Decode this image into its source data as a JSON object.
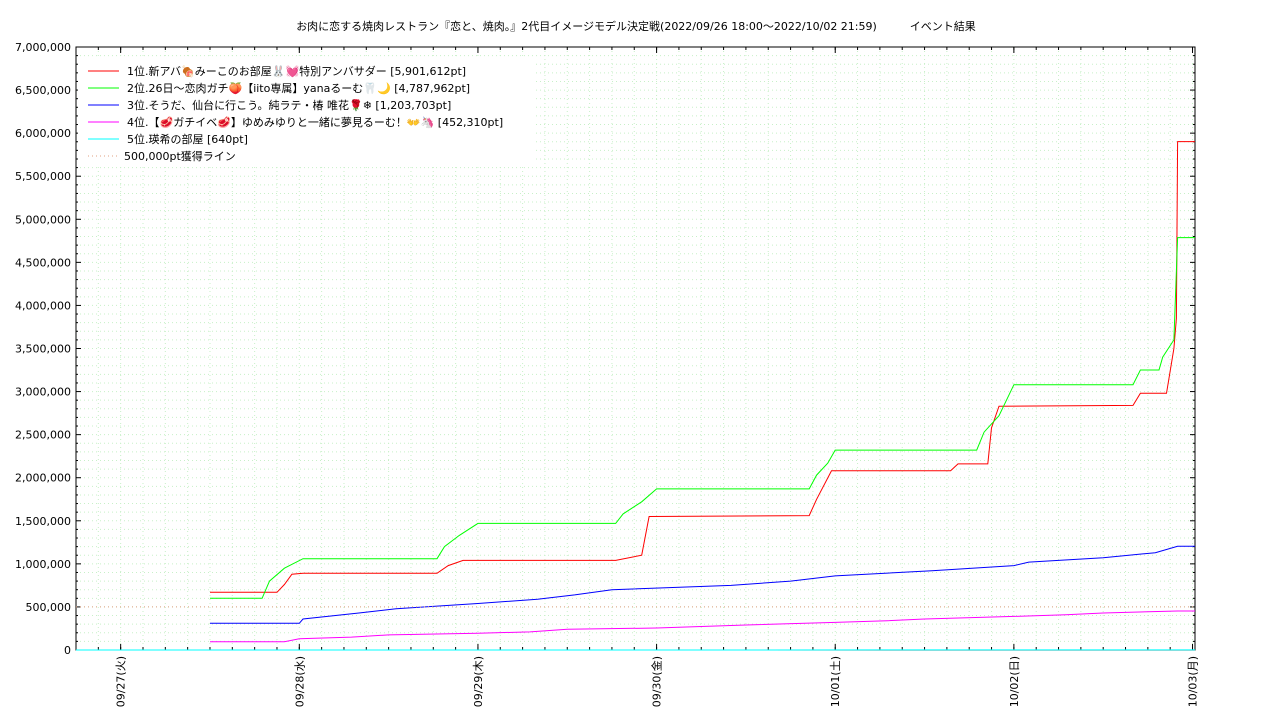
{
  "chart_data": {
    "type": "line",
    "title": "お肉に恋する焼肉レストラン『恋と、焼肉。』2代目イメージモデル決定戦(2022/09/26 18:00～2022/10/02 21:59)　　　イベント結果",
    "xlabel": "",
    "ylabel": "",
    "ylim": [
      0,
      7000000
    ],
    "xlim": [
      "2022-09-26T18:00",
      "2022-10-03T00:20"
    ],
    "grid": true,
    "legend_position": "top-left",
    "y_ticks": [
      {
        "value": 0,
        "label": "0"
      },
      {
        "value": 500000,
        "label": "500,000"
      },
      {
        "value": 1000000,
        "label": "1,000,000"
      },
      {
        "value": 1500000,
        "label": "1,500,000"
      },
      {
        "value": 2000000,
        "label": "2,000,000"
      },
      {
        "value": 2500000,
        "label": "2,500,000"
      },
      {
        "value": 3000000,
        "label": "3,000,000"
      },
      {
        "value": 3500000,
        "label": "3,500,000"
      },
      {
        "value": 4000000,
        "label": "4,000,000"
      },
      {
        "value": 4500000,
        "label": "4,500,000"
      },
      {
        "value": 5000000,
        "label": "5,000,000"
      },
      {
        "value": 5500000,
        "label": "5,500,000"
      },
      {
        "value": 6000000,
        "label": "6,000,000"
      },
      {
        "value": 6500000,
        "label": "6,500,000"
      },
      {
        "value": 7000000,
        "label": "7,000,000"
      }
    ],
    "x_ticks": [
      {
        "value": "2022-09-27T00:00",
        "label": "09/27(火)"
      },
      {
        "value": "2022-09-28T00:00",
        "label": "09/28(水)"
      },
      {
        "value": "2022-09-29T00:00",
        "label": "09/29(木)"
      },
      {
        "value": "2022-09-30T00:00",
        "label": "09/30(金)"
      },
      {
        "value": "2022-10-01T00:00",
        "label": "10/01(土)"
      },
      {
        "value": "2022-10-02T00:00",
        "label": "10/02(日)"
      },
      {
        "value": "2022-10-03T00:00",
        "label": "10/03(月)"
      }
    ],
    "series": [
      {
        "name": "1位.新アバ🍖みーこのお部屋🐰💓特別アンバサダー [5,901,612pt]",
        "color": "#ff0000",
        "dash": false,
        "points": [
          [
            "2022-09-27T12:00",
            670000
          ],
          [
            "2022-09-27T21:00",
            670000
          ],
          [
            "2022-09-27T22:00",
            760000
          ],
          [
            "2022-09-27T23:00",
            880000
          ],
          [
            "2022-09-28T00:30",
            890000
          ],
          [
            "2022-09-28T18:30",
            890000
          ],
          [
            "2022-09-28T20:00",
            980000
          ],
          [
            "2022-09-28T22:00",
            1040000
          ],
          [
            "2022-09-29T18:30",
            1040000
          ],
          [
            "2022-09-29T22:00",
            1100000
          ],
          [
            "2022-09-29T23:00",
            1550000
          ],
          [
            "2022-09-30T20:30",
            1560000
          ],
          [
            "2022-09-30T21:30",
            1750000
          ],
          [
            "2022-09-30T23:30",
            2080000
          ],
          [
            "2022-10-01T15:30",
            2080000
          ],
          [
            "2022-10-01T16:30",
            2160000
          ],
          [
            "2022-10-01T20:30",
            2160000
          ],
          [
            "2022-10-01T21:00",
            2580000
          ],
          [
            "2022-10-01T22:00",
            2830000
          ],
          [
            "2022-10-02T16:00",
            2840000
          ],
          [
            "2022-10-02T17:00",
            2980000
          ],
          [
            "2022-10-02T20:30",
            2980000
          ],
          [
            "2022-10-02T21:30",
            3500000
          ],
          [
            "2022-10-02T21:50",
            3850000
          ],
          [
            "2022-10-02T22:00",
            5901612
          ],
          [
            "2022-10-03T00:20",
            5901612
          ]
        ]
      },
      {
        "name": "2位.26日〜恋肉ガチ🍑【iito専属】yanaるーむ🦷🌙 [4,787,962pt]",
        "color": "#00ff00",
        "dash": false,
        "points": [
          [
            "2022-09-27T12:00",
            600000
          ],
          [
            "2022-09-27T19:00",
            600000
          ],
          [
            "2022-09-27T20:00",
            800000
          ],
          [
            "2022-09-27T22:00",
            950000
          ],
          [
            "2022-09-28T00:30",
            1060000
          ],
          [
            "2022-09-28T18:30",
            1060000
          ],
          [
            "2022-09-28T19:30",
            1200000
          ],
          [
            "2022-09-28T21:30",
            1330000
          ],
          [
            "2022-09-29T00:00",
            1470000
          ],
          [
            "2022-09-29T18:30",
            1470000
          ],
          [
            "2022-09-29T19:30",
            1580000
          ],
          [
            "2022-09-29T22:00",
            1720000
          ],
          [
            "2022-09-30T00:00",
            1870000
          ],
          [
            "2022-09-30T20:30",
            1870000
          ],
          [
            "2022-09-30T21:30",
            2030000
          ],
          [
            "2022-09-30T23:00",
            2170000
          ],
          [
            "2022-10-01T00:00",
            2320000
          ],
          [
            "2022-10-01T19:00",
            2320000
          ],
          [
            "2022-10-01T20:00",
            2530000
          ],
          [
            "2022-10-01T22:00",
            2720000
          ],
          [
            "2022-10-02T00:00",
            3080000
          ],
          [
            "2022-10-02T16:00",
            3080000
          ],
          [
            "2022-10-02T17:00",
            3250000
          ],
          [
            "2022-10-02T19:30",
            3250000
          ],
          [
            "2022-10-02T20:00",
            3400000
          ],
          [
            "2022-10-02T21:30",
            3600000
          ],
          [
            "2022-10-02T22:00",
            4787962
          ],
          [
            "2022-10-03T00:20",
            4787962
          ]
        ]
      },
      {
        "name": "3位.そうだ、仙台に行こう。純ラテ・椿 唯花🌹❄ [1,203,703pt]",
        "color": "#0000ff",
        "dash": false,
        "points": [
          [
            "2022-09-27T12:00",
            310000
          ],
          [
            "2022-09-28T00:00",
            310000
          ],
          [
            "2022-09-28T00:30",
            360000
          ],
          [
            "2022-09-28T08:00",
            430000
          ],
          [
            "2022-09-28T13:00",
            480000
          ],
          [
            "2022-09-29T00:00",
            540000
          ],
          [
            "2022-09-29T08:00",
            590000
          ],
          [
            "2022-09-29T13:00",
            640000
          ],
          [
            "2022-09-29T18:00",
            700000
          ],
          [
            "2022-09-30T10:00",
            750000
          ],
          [
            "2022-09-30T18:00",
            800000
          ],
          [
            "2022-10-01T00:00",
            860000
          ],
          [
            "2022-10-01T13:00",
            920000
          ],
          [
            "2022-10-02T00:00",
            980000
          ],
          [
            "2022-10-02T02:00",
            1020000
          ],
          [
            "2022-10-02T12:00",
            1070000
          ],
          [
            "2022-10-02T19:00",
            1130000
          ],
          [
            "2022-10-02T22:00",
            1203703
          ],
          [
            "2022-10-03T00:20",
            1203703
          ]
        ]
      },
      {
        "name": "4位.【🥩ガチイベ🥩】ゆめみゆりと一緒に夢見るーむ！👐🦄 [452,310pt]",
        "color": "#ff00ff",
        "dash": false,
        "points": [
          [
            "2022-09-27T12:00",
            95000
          ],
          [
            "2022-09-27T22:00",
            95000
          ],
          [
            "2022-09-28T00:00",
            130000
          ],
          [
            "2022-09-28T07:00",
            150000
          ],
          [
            "2022-09-28T12:00",
            175000
          ],
          [
            "2022-09-29T00:00",
            195000
          ],
          [
            "2022-09-29T07:00",
            210000
          ],
          [
            "2022-09-29T12:00",
            240000
          ],
          [
            "2022-09-30T00:00",
            255000
          ],
          [
            "2022-09-30T07:00",
            275000
          ],
          [
            "2022-09-30T12:00",
            290000
          ],
          [
            "2022-10-01T00:00",
            320000
          ],
          [
            "2022-10-01T07:00",
            340000
          ],
          [
            "2022-10-01T12:00",
            360000
          ],
          [
            "2022-10-02T00:00",
            390000
          ],
          [
            "2022-10-02T07:00",
            410000
          ],
          [
            "2022-10-02T12:00",
            430000
          ],
          [
            "2022-10-02T22:00",
            452310
          ],
          [
            "2022-10-03T00:20",
            452310
          ]
        ]
      },
      {
        "name": "5位.瑛希の部屋 [640pt]",
        "color": "#00ffff",
        "dash": false,
        "points": [
          [
            "2022-09-26T18:00",
            0
          ],
          [
            "2022-10-03T00:20",
            640
          ]
        ]
      },
      {
        "name": "500,000pt獲得ライン",
        "color": "#e0a080",
        "dash": true,
        "points": [
          [
            "2022-09-26T18:00",
            500000
          ],
          [
            "2022-10-03T00:20",
            500000
          ]
        ]
      }
    ]
  }
}
